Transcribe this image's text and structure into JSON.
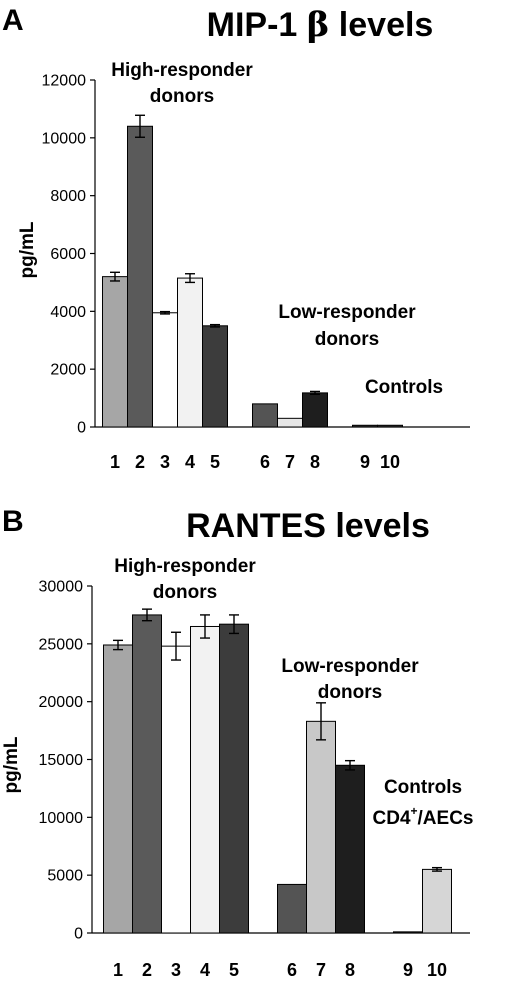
{
  "chart_data": [
    {
      "type": "bar",
      "panel_label": "A",
      "title": "MIP-1 ",
      "title_symbol": "β",
      "title_suffix": " levels",
      "ylabel": "pg/mL",
      "xlabel": "",
      "ylim": [
        0,
        12000
      ],
      "yticks": [
        0,
        2000,
        4000,
        6000,
        8000,
        10000,
        12000
      ],
      "grid": false,
      "categories": [
        "1",
        "2",
        "3",
        "4",
        "5",
        "6",
        "7",
        "8",
        "9",
        "10"
      ],
      "values": [
        5200,
        10400,
        3950,
        5150,
        3500,
        800,
        300,
        1180,
        60,
        60
      ],
      "errors": [
        150,
        380,
        40,
        150,
        40,
        0,
        0,
        50,
        0,
        0
      ],
      "colors": [
        "#a6a6a6",
        "#5a5a5a",
        "#ffffff",
        "#f2f2f2",
        "#3c3c3c",
        "#545454",
        "#e6e6e6",
        "#1e1e1e",
        "#333333",
        "#333333"
      ],
      "annotations": [
        {
          "lines": [
            "High-responder",
            "donors"
          ]
        },
        {
          "lines": [
            "Low-responder",
            "donors"
          ]
        },
        {
          "lines": [
            "Controls"
          ]
        }
      ]
    },
    {
      "type": "bar",
      "panel_label": "B",
      "title": "RANTES levels",
      "ylabel": "pg/mL",
      "xlabel": "",
      "ylim": [
        0,
        30000
      ],
      "yticks": [
        0,
        5000,
        10000,
        15000,
        20000,
        25000,
        30000
      ],
      "grid": false,
      "categories": [
        "1",
        "2",
        "3",
        "4",
        "5",
        "6",
        "7",
        "8",
        "9",
        "10"
      ],
      "values": [
        24900,
        27500,
        24800,
        26500,
        26700,
        4200,
        18300,
        14500,
        100,
        5500
      ],
      "errors": [
        400,
        500,
        1200,
        1000,
        800,
        0,
        1600,
        400,
        0,
        150
      ],
      "colors": [
        "#a6a6a6",
        "#5a5a5a",
        "#ffffff",
        "#f2f2f2",
        "#3c3c3c",
        "#545454",
        "#c8c8c8",
        "#1e1e1e",
        "#333333",
        "#d6d6d6"
      ],
      "annotations": [
        {
          "lines": [
            "High-responder",
            "donors"
          ]
        },
        {
          "lines": [
            "Low-responder",
            "donors"
          ]
        },
        {
          "lines": [
            "Controls"
          ],
          "special": {
            "base": "CD4",
            "sup": "+",
            "rest": "/AECs"
          }
        }
      ]
    }
  ]
}
